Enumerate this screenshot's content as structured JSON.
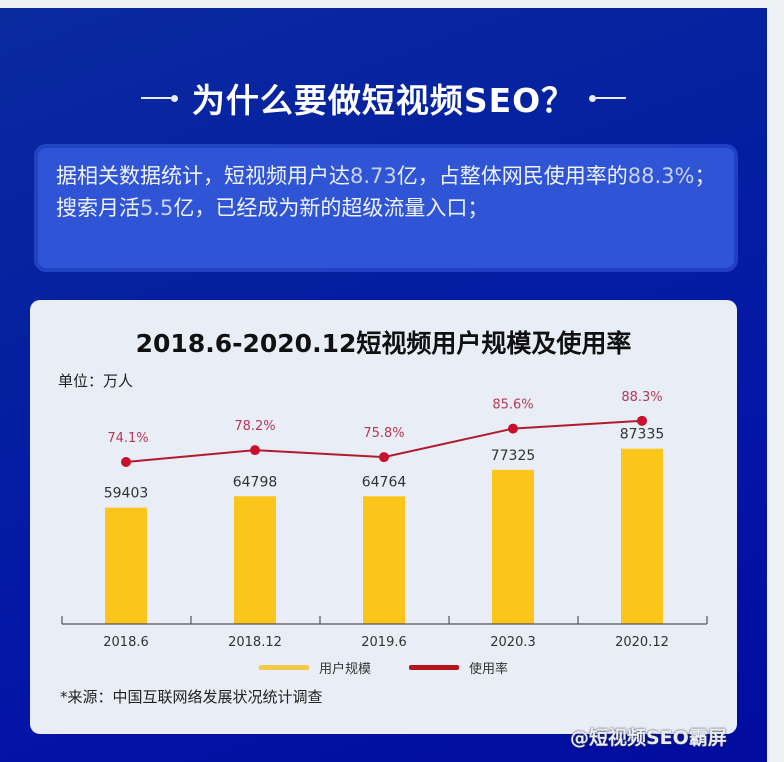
{
  "header": {
    "title": "为什么要做短视频SEO？"
  },
  "intro": {
    "segments": [
      {
        "text": "据相关数据统计，短视频用户达",
        "hl": false
      },
      {
        "text": "8.73",
        "hl": true
      },
      {
        "text": "亿，占整体网民使用率的",
        "hl": false
      },
      {
        "text": "88.3%",
        "hl": true
      },
      {
        "text": "；搜索月活",
        "hl": false
      },
      {
        "text": "5.5",
        "hl": true
      },
      {
        "text": "亿，已经成为新的超级流量入口；",
        "hl": false
      }
    ]
  },
  "card": {
    "unit_label": "单位：万人",
    "source_label": "*来源：中国互联网络发展状况统计调查"
  },
  "colors": {
    "bar": "#fbc51a",
    "line": "#c8102e",
    "panel_blue": "#0420a0",
    "intro_box": "#2f55d6",
    "card_bg": "#e9edf5"
  },
  "watermark": "@短视频SEO霸屏",
  "chart_data": {
    "type": "bar",
    "title": "2018.6-2020.12短视频用户规模及使用率",
    "xlabel": "",
    "ylabel": "单位：万人",
    "categories": [
      "2018.6",
      "2018.12",
      "2019.6",
      "2020.3",
      "2020.12"
    ],
    "series": [
      {
        "name": "用户规模",
        "type": "bar",
        "values": [
          59403,
          64798,
          64764,
          77325,
          87335
        ],
        "labels": [
          "59403",
          "64798",
          "64764",
          "77325",
          "87335"
        ]
      },
      {
        "name": "使用率",
        "type": "line",
        "values": [
          74.1,
          78.2,
          75.8,
          85.6,
          88.3
        ],
        "labels": [
          "74.1%",
          "78.2%",
          "75.8%",
          "85.6%",
          "88.3%"
        ]
      }
    ],
    "legend": {
      "position": "bottom",
      "entries": [
        "用户规模",
        "使用率"
      ]
    },
    "grid": false
  }
}
